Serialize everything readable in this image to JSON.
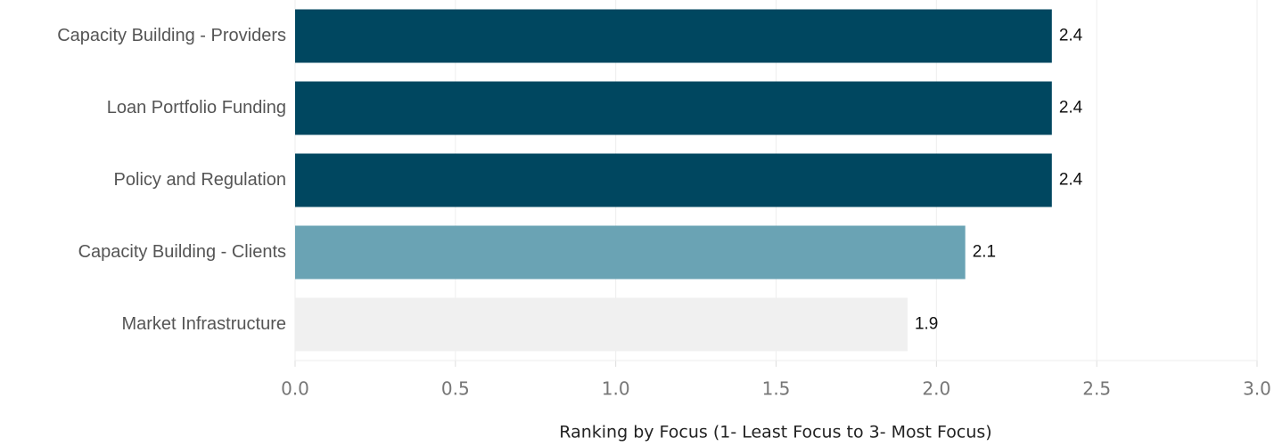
{
  "chart_data": {
    "type": "barh",
    "categories": [
      "Capacity Building - Providers",
      "Loan Portfolio Funding",
      "Policy and Regulation",
      "Capacity Building - Clients",
      "Market Infrastructure"
    ],
    "values": [
      2.36,
      2.36,
      2.36,
      2.09,
      1.91
    ],
    "value_labels": [
      "2.4",
      "2.4",
      "2.4",
      "2.1",
      "1.9"
    ],
    "colors": [
      "#004760",
      "#004760",
      "#004760",
      "#6aa3b4",
      "#f0f0f0"
    ],
    "xlabel": "Ranking by Focus (1- Least Focus to 3- Most Focus)",
    "xlim": [
      0,
      3
    ],
    "xticks": [
      {
        "value": 0,
        "label": "0.0"
      },
      {
        "value": 0.5,
        "label": "0.5"
      },
      {
        "value": 1,
        "label": "1.0"
      },
      {
        "value": 1.5,
        "label": "1.5"
      },
      {
        "value": 2,
        "label": "2.0"
      },
      {
        "value": 2.5,
        "label": "2.5"
      },
      {
        "value": 3,
        "label": "3.0"
      }
    ],
    "grid": true
  }
}
